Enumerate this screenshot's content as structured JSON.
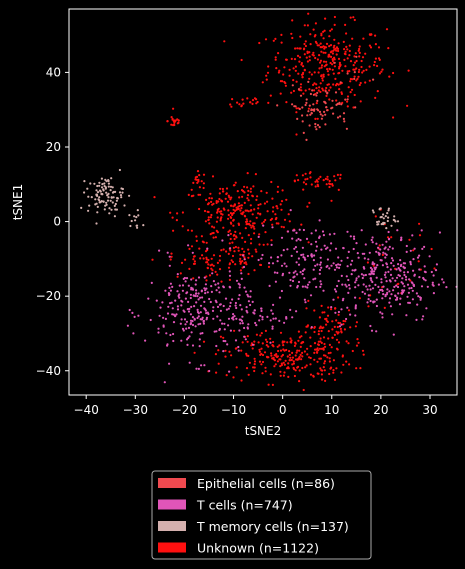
{
  "chart_data": {
    "type": "scatter",
    "title": "",
    "xlabel": "tSNE2",
    "ylabel": "tSNE1",
    "xlim": [
      -43.5,
      35.5
    ],
    "ylim": [
      -46.5,
      57
    ],
    "x_ticks": [
      -40,
      -30,
      -20,
      -10,
      0,
      10,
      20,
      30
    ],
    "y_ticks": [
      -40,
      -20,
      0,
      20,
      40
    ],
    "x_tick_labels": [
      "−40",
      "−30",
      "−20",
      "−10",
      "0",
      "10",
      "20",
      "30"
    ],
    "y_tick_labels": [
      "−40",
      "−20",
      "0",
      "20",
      "40"
    ],
    "grid": false,
    "legend_position": "bottom-center (below plot)",
    "series": [
      {
        "name": "Epithelial cells (n=86)",
        "color": "#f04a50",
        "count": 86,
        "clusters": [
          {
            "cx": 7,
            "cy": 30,
            "sx": 3.5,
            "sy": 3,
            "n": 70
          },
          {
            "cx": 10,
            "cy": 38,
            "sx": 4,
            "sy": 4,
            "n": 16
          }
        ]
      },
      {
        "name": "T cells (n=747)",
        "color": "#e055b8",
        "count": 747,
        "clusters": [
          {
            "cx": -17,
            "cy": -24,
            "sx": 5.5,
            "sy": 6.5,
            "n": 260
          },
          {
            "cx": 4,
            "cy": -10,
            "sx": 5,
            "sy": 5,
            "n": 140
          },
          {
            "cx": 21,
            "cy": -15,
            "sx": 5.5,
            "sy": 6,
            "n": 300
          },
          {
            "cx": -5,
            "cy": -25,
            "sx": 4,
            "sy": 4,
            "n": 47
          }
        ]
      },
      {
        "name": "T memory cells (n=137)",
        "color": "#d4b0ae",
        "count": 137,
        "clusters": [
          {
            "cx": -36,
            "cy": 7,
            "sx": 1.8,
            "sy": 2.5,
            "n": 95
          },
          {
            "cx": -30,
            "cy": 0,
            "sx": 1,
            "sy": 1.5,
            "n": 12
          },
          {
            "cx": 20.5,
            "cy": 1,
            "sx": 1.2,
            "sy": 1.5,
            "n": 30
          }
        ]
      },
      {
        "name": "Unknown (n=1122)",
        "color": "#ff1010",
        "count": 1122,
        "clusters": [
          {
            "cx": 9,
            "cy": 42,
            "sx": 6,
            "sy": 5.5,
            "n": 330
          },
          {
            "cx": -7.5,
            "cy": 32,
            "sx": 2,
            "sy": 1,
            "n": 18
          },
          {
            "cx": -22,
            "cy": 27,
            "sx": 0.7,
            "sy": 1,
            "n": 20
          },
          {
            "cx": -17,
            "cy": 11,
            "sx": 1,
            "sy": 1.2,
            "n": 15
          },
          {
            "cx": 7,
            "cy": 10.5,
            "sx": 3,
            "sy": 1.3,
            "n": 40
          },
          {
            "cx": -9,
            "cy": 2,
            "sx": 6,
            "sy": 4.5,
            "n": 260
          },
          {
            "cx": 1,
            "cy": -36,
            "sx": 6.5,
            "sy": 3.5,
            "n": 260
          },
          {
            "cx": -16,
            "cy": -11,
            "sx": 3.5,
            "sy": 2,
            "n": 50
          },
          {
            "cx": 10,
            "cy": -28,
            "sx": 3,
            "sy": 3,
            "n": 60
          },
          {
            "cx": -8,
            "cy": -10,
            "sx": 2,
            "sy": 2,
            "n": 40
          },
          {
            "cx": 22,
            "cy": -10,
            "sx": 5,
            "sy": 6,
            "n": 29
          }
        ]
      }
    ]
  }
}
